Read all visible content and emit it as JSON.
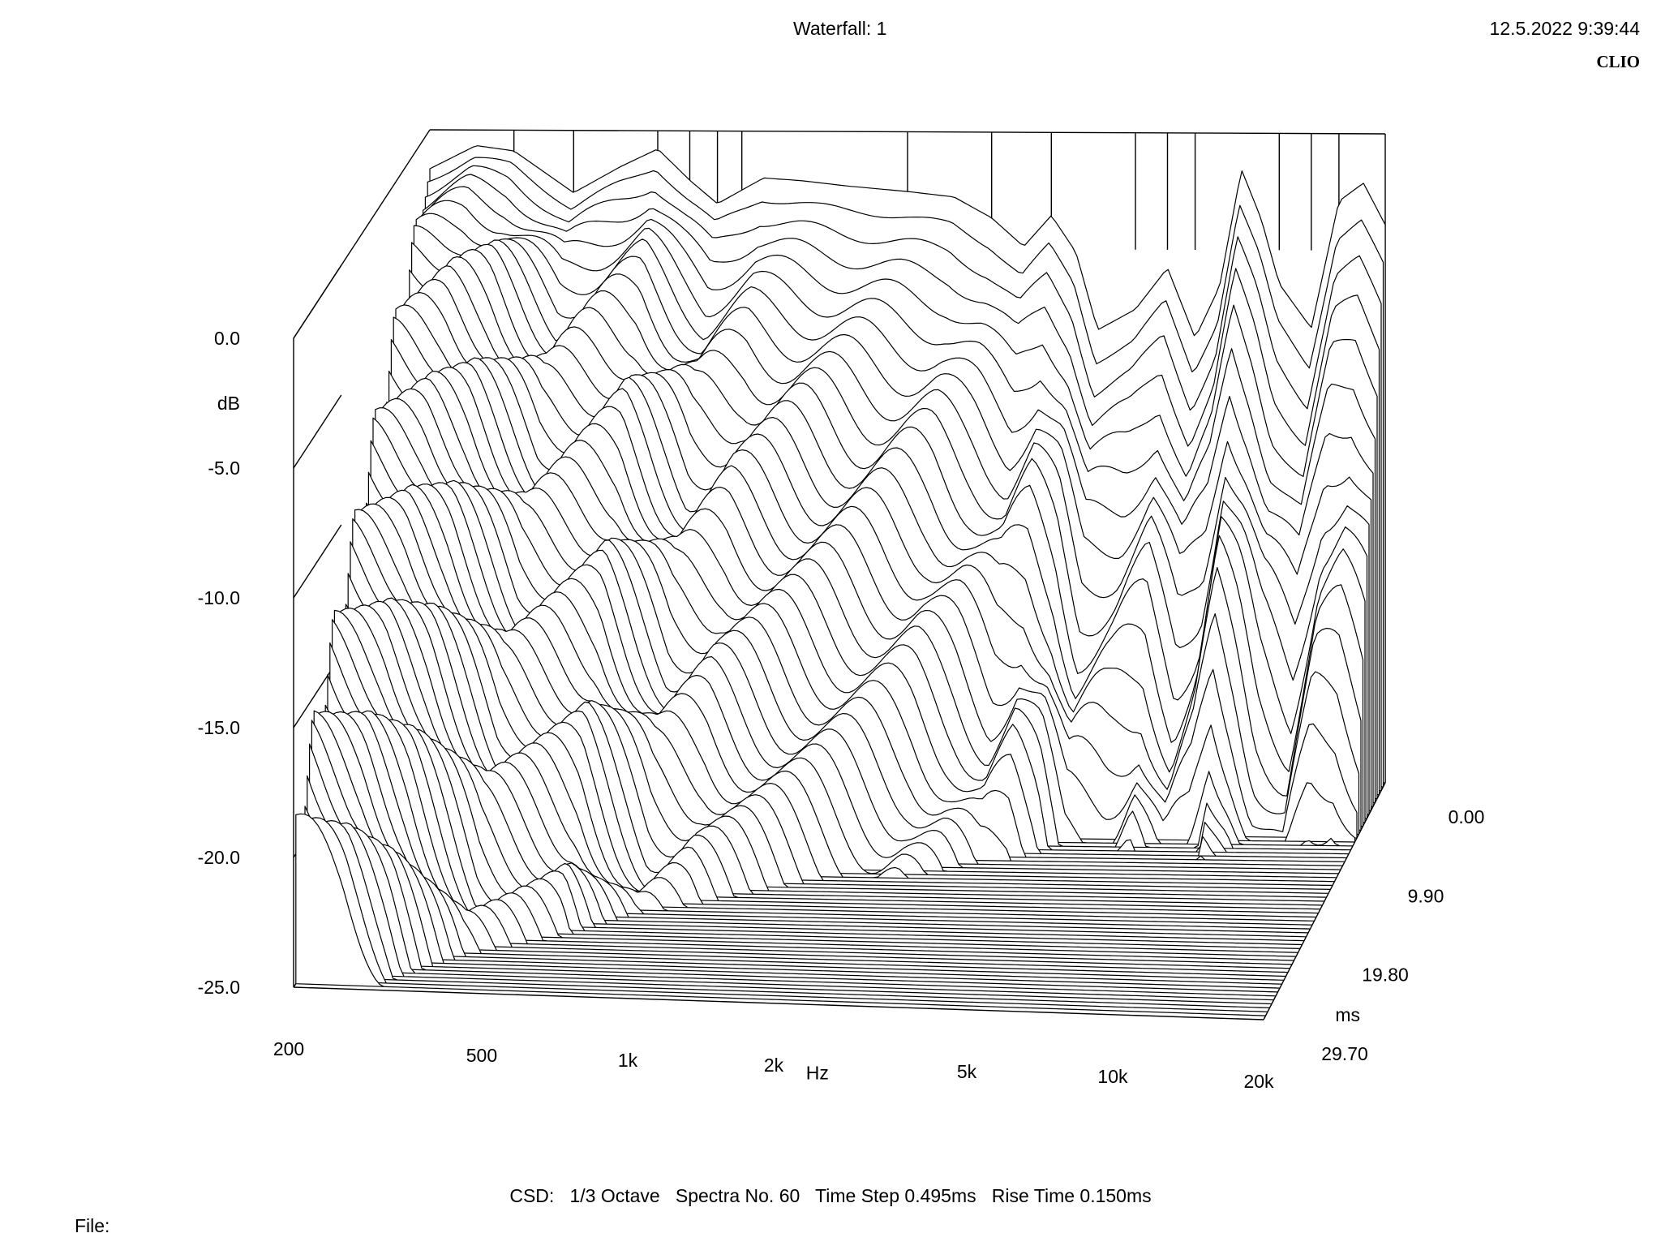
{
  "header": {
    "title": "Waterfall: 1",
    "timestamp": "12.5.2022 9:39:44",
    "brand": "CLIO"
  },
  "footer": {
    "settings": "CSD:   1/3 Octave   Spectra No. 60   Time Step 0.495ms   Rise Time 0.150ms",
    "file": "File:"
  },
  "chart_data": {
    "type": "waterfall",
    "title": "Waterfall: 1",
    "xlabel": "Hz",
    "ylabel": "dB",
    "zlabel": "ms",
    "x_scale": "log",
    "xlim": [
      200,
      20000
    ],
    "ylim": [
      -25,
      0
    ],
    "zlim": [
      0,
      29.7
    ],
    "x_ticks": [
      {
        "value": 200,
        "label": "200"
      },
      {
        "value": 500,
        "label": "500"
      },
      {
        "value": 1000,
        "label": "1k"
      },
      {
        "value": 2000,
        "label": "2k"
      },
      {
        "value": 5000,
        "label": "5k"
      },
      {
        "value": 10000,
        "label": "10k"
      },
      {
        "value": 20000,
        "label": "20k"
      }
    ],
    "y_ticks": [
      {
        "value": 0,
        "label": "0.0"
      },
      {
        "value": -5,
        "label": "-5.0"
      },
      {
        "value": -10,
        "label": "-10.0"
      },
      {
        "value": -15,
        "label": "-15.0"
      },
      {
        "value": -20,
        "label": "-20.0"
      },
      {
        "value": -25,
        "label": "-25.0"
      }
    ],
    "z_ticks": [
      {
        "value": 0,
        "label": "0.00"
      },
      {
        "value": 9.9,
        "label": "9.90"
      },
      {
        "value": 19.8,
        "label": "19.80"
      },
      {
        "value": 29.7,
        "label": "29.70"
      }
    ],
    "spectra_count": 60,
    "time_step_ms": 0.495,
    "rise_time_ms": 0.15,
    "smoothing": "1/3 Octave",
    "first_slice": {
      "freq_hz": [
        200,
        250,
        300,
        400,
        500,
        600,
        700,
        800,
        1000,
        1200,
        1500,
        2000,
        2500,
        3000,
        3500,
        4000,
        4500,
        5000,
        6000,
        7000,
        8000,
        9000,
        10000,
        11000,
        12000,
        14000,
        16000,
        18000,
        20000
      ],
      "db": [
        -1.5,
        -0.6,
        -0.8,
        -2.4,
        -1.4,
        -0.7,
        -1.9,
        -2.8,
        -1.8,
        -1.9,
        -2.1,
        -2.3,
        -2.5,
        -3.3,
        -4.4,
        -3.2,
        -4.6,
        -7.6,
        -6.8,
        -5.2,
        -7.9,
        -5.9,
        -1.4,
        -3.3,
        -5.8,
        -7.5,
        -2.6,
        -1.9,
        -3.5
      ]
    }
  }
}
